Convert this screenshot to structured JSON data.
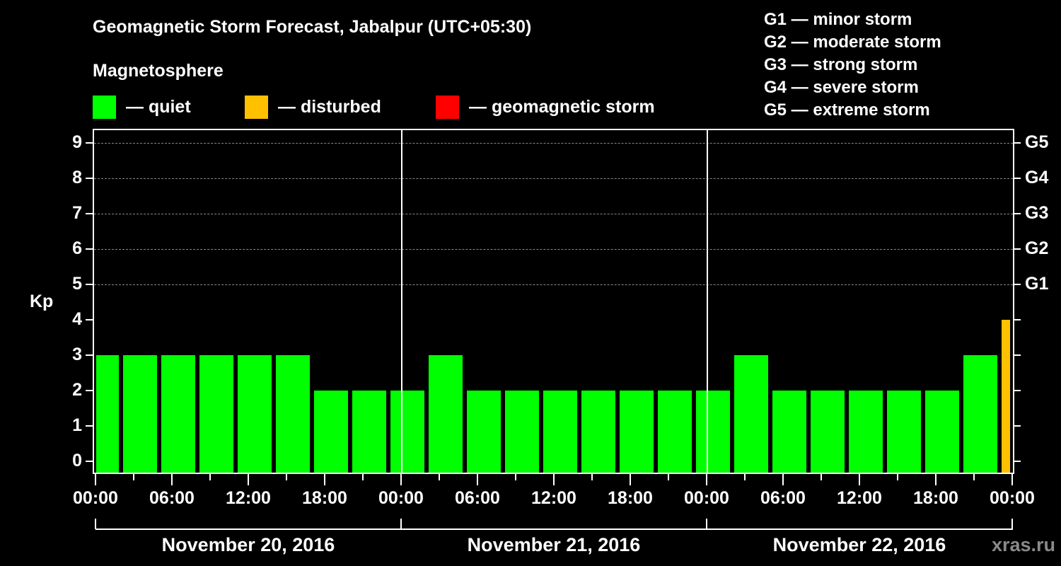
{
  "header": {
    "title": "Geomagnetic Storm Forecast, Jabalpur (UTC+05:30)",
    "subtitle": "Magnetosphere"
  },
  "legend": [
    {
      "label": "— quiet",
      "color": "#00ff00"
    },
    {
      "label": "— disturbed",
      "color": "#ffc000"
    },
    {
      "label": "— geomagnetic storm",
      "color": "#ff0000"
    }
  ],
  "storm_scale": [
    "G1 — minor storm",
    "G2 — moderate storm",
    "G3 — strong storm",
    "G4 — severe storm",
    "G5 — extreme storm"
  ],
  "axes": {
    "y_label": "Kp",
    "y_ticks": [
      "0",
      "1",
      "2",
      "3",
      "4",
      "5",
      "6",
      "7",
      "8",
      "9"
    ],
    "right_ticks": [
      "G1",
      "G2",
      "G3",
      "G4",
      "G5"
    ],
    "x_ticks": [
      "00:00",
      "06:00",
      "12:00",
      "18:00",
      "00:00",
      "06:00",
      "12:00",
      "18:00",
      "00:00",
      "06:00",
      "12:00",
      "18:00",
      "00:00"
    ],
    "days": [
      "November 20, 2016",
      "November 21, 2016",
      "November 22, 2016"
    ]
  },
  "watermark": "xras.ru",
  "chart_data": {
    "type": "bar",
    "title": "Geomagnetic Storm Forecast, Jabalpur (UTC+05:30)",
    "xlabel": "",
    "ylabel": "Kp",
    "ylim": [
      0,
      9
    ],
    "interval_hours": 3,
    "x_start_local": "2016-11-20 00:00 (first bar partial, starts 00:00 local, ends 02:30)",
    "categories": [
      "Nov20 00:00-02:30",
      "02:30-05:30",
      "05:30-08:30",
      "08:30-11:30",
      "11:30-14:30",
      "14:30-17:30",
      "17:30-20:30",
      "20:30-23:30",
      "23:30-02:30",
      "Nov21 02:30-05:30",
      "05:30-08:30",
      "08:30-11:30",
      "11:30-14:30",
      "14:30-17:30",
      "17:30-20:30",
      "20:30-23:30",
      "23:30-02:30",
      "Nov22 02:30-05:30",
      "05:30-08:30",
      "08:30-11:30",
      "11:30-14:30",
      "14:30-17:30",
      "17:30-20:30",
      "20:30-23:30",
      "23:30-00:00"
    ],
    "values": [
      3,
      3,
      3,
      3,
      3,
      3,
      2,
      2,
      2,
      3,
      2,
      2,
      2,
      2,
      2,
      2,
      2,
      3,
      2,
      2,
      2,
      2,
      2,
      3,
      4
    ],
    "status": [
      "quiet",
      "quiet",
      "quiet",
      "quiet",
      "quiet",
      "quiet",
      "quiet",
      "quiet",
      "quiet",
      "quiet",
      "quiet",
      "quiet",
      "quiet",
      "quiet",
      "quiet",
      "quiet",
      "quiet",
      "quiet",
      "quiet",
      "quiet",
      "quiet",
      "quiet",
      "quiet",
      "quiet",
      "disturbed"
    ],
    "colors": {
      "quiet": "#00ff00",
      "disturbed": "#ffc000",
      "storm": "#ff0000"
    },
    "right_axis": {
      "G1": 5,
      "G2": 6,
      "G3": 7,
      "G4": 8,
      "G5": 9
    },
    "grid": "dashed horizontal at Kp 5-9",
    "legend_position": "top"
  }
}
